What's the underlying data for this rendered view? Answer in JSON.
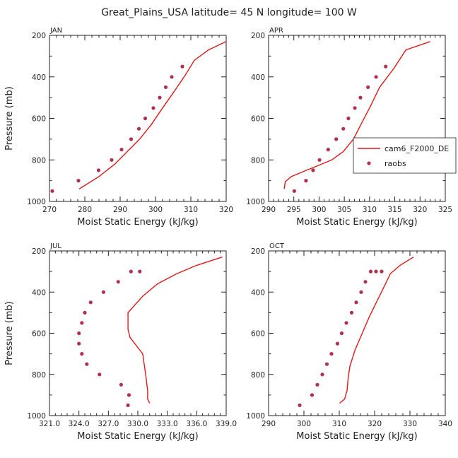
{
  "figure": {
    "title": "Great_Plains_USA  latitude= 45 N longitude= 100 W"
  },
  "colors": {
    "model": "#e01818",
    "obs": "#b03050",
    "axis": "#222222"
  },
  "legend": {
    "model_label": "cam6_F2000_DE",
    "obs_label": "raobs"
  },
  "chart_data": [
    {
      "type": "line",
      "panel": "JAN",
      "title": "JAN",
      "xlabel": "Moist Static Energy (kJ/kg)",
      "ylabel": "Pressure (mb)",
      "xlim": [
        270,
        320
      ],
      "ylim": [
        1000,
        200
      ],
      "xticks": [
        270,
        280,
        290,
        300,
        310,
        320
      ],
      "xtick_labels": [
        "270",
        "280",
        "290",
        "300",
        "310",
        "320"
      ],
      "yticks": [
        200,
        400,
        600,
        800,
        1000
      ],
      "ytick_labels": [
        "200",
        "400",
        "600",
        "800",
        "1000"
      ],
      "series": [
        {
          "name": "cam6_F2000_DE",
          "style": "line",
          "x": [
            278.4,
            284,
            288.5,
            292,
            295.5,
            298.8,
            302,
            305.3,
            308.5,
            311,
            315,
            320
          ],
          "y": [
            940,
            880,
            820,
            760,
            700,
            630,
            550,
            470,
            390,
            320,
            270,
            230
          ]
        },
        {
          "name": "raobs",
          "style": "points",
          "x": [
            270.8,
            278.2,
            283.9,
            287.6,
            290.4,
            293.1,
            295.3,
            297.1,
            299.4,
            301.2,
            302.9,
            304.6,
            307.6
          ],
          "y": [
            950,
            900,
            850,
            800,
            750,
            700,
            650,
            600,
            550,
            500,
            450,
            400,
            350
          ]
        }
      ]
    },
    {
      "type": "line",
      "panel": "APR",
      "title": "APR",
      "xlabel": "Moist Static Energy (kJ/kg)",
      "ylabel": "",
      "xlim": [
        290,
        325
      ],
      "ylim": [
        1000,
        200
      ],
      "xticks": [
        290,
        295,
        300,
        305,
        310,
        315,
        320,
        325
      ],
      "xtick_labels": [
        "290",
        "295",
        "300",
        "305",
        "310",
        "315",
        "320",
        "325"
      ],
      "yticks": [
        200,
        400,
        600,
        800,
        1000
      ],
      "ytick_labels": [
        "200",
        "400",
        "600",
        "800",
        "1000"
      ],
      "legend_position": "right-middle",
      "series": [
        {
          "name": "cam6_F2000_DE",
          "style": "line",
          "x": [
            293.1,
            293.3,
            294.5,
            296.5,
            299.5,
            302.5,
            304.8,
            306.8,
            308.5,
            310.2,
            312,
            314.8,
            317.2,
            322
          ],
          "y": [
            940,
            905,
            880,
            860,
            830,
            800,
            760,
            700,
            620,
            540,
            450,
            360,
            270,
            230
          ]
        },
        {
          "name": "raobs",
          "style": "points",
          "x": [
            295.1,
            297.4,
            298.8,
            300.1,
            301.8,
            303.4,
            304.8,
            305.8,
            307.1,
            308.2,
            309.7,
            311.3,
            313.2
          ],
          "y": [
            950,
            900,
            850,
            800,
            750,
            700,
            650,
            600,
            550,
            500,
            450,
            400,
            350
          ]
        }
      ]
    },
    {
      "type": "line",
      "panel": "JUL",
      "title": "JUL",
      "xlabel": "Moist Static Energy (kJ/kg)",
      "ylabel": "Pressure (mb)",
      "xlim": [
        321,
        339
      ],
      "ylim": [
        1000,
        200
      ],
      "xticks": [
        321,
        324,
        327,
        330,
        333,
        336,
        339
      ],
      "xtick_labels": [
        "321.0",
        "324.0",
        "327.0",
        "330.0",
        "333.0",
        "336.0",
        "339.0"
      ],
      "yticks": [
        200,
        400,
        600,
        800,
        1000
      ],
      "ytick_labels": [
        "200",
        "400",
        "600",
        "800",
        "1000"
      ],
      "series": [
        {
          "name": "cam6_F2000_DE",
          "style": "line",
          "x": [
            331.2,
            331,
            331,
            330.8,
            330.5,
            329.2,
            329,
            329,
            330.5,
            332,
            334,
            336,
            338.6
          ],
          "y": [
            940,
            920,
            880,
            800,
            700,
            620,
            580,
            500,
            420,
            360,
            310,
            270,
            230
          ]
        },
        {
          "name": "raobs",
          "style": "points",
          "x": [
            329.0,
            329.1,
            328.3,
            326.1,
            324.8,
            324.3,
            324.0,
            324.0,
            324.3,
            324.6,
            325.2,
            326.5,
            328.0,
            329.3,
            330.2
          ],
          "y": [
            950,
            900,
            850,
            800,
            750,
            700,
            650,
            600,
            550,
            500,
            450,
            400,
            350,
            300,
            300
          ]
        }
      ]
    },
    {
      "type": "line",
      "panel": "OCT",
      "title": "OCT",
      "xlabel": "Moist Static Energy (kJ/kg)",
      "ylabel": "",
      "xlim": [
        290,
        340
      ],
      "ylim": [
        1000,
        200
      ],
      "xticks": [
        290,
        300,
        310,
        320,
        330,
        340
      ],
      "xtick_labels": [
        "290",
        "300",
        "310",
        "320",
        "330",
        "340"
      ],
      "yticks": [
        200,
        400,
        600,
        800,
        1000
      ],
      "ytick_labels": [
        "200",
        "400",
        "600",
        "800",
        "1000"
      ],
      "series": [
        {
          "name": "cam6_F2000_DE",
          "style": "line",
          "x": [
            310.1,
            311.5,
            312.2,
            312.5,
            313,
            314.5,
            316.5,
            318.5,
            320.5,
            322.5,
            324.5,
            327.2,
            331
          ],
          "y": [
            940,
            920,
            880,
            820,
            760,
            680,
            600,
            520,
            450,
            380,
            310,
            270,
            230
          ]
        },
        {
          "name": "raobs",
          "style": "points",
          "x": [
            298.8,
            302.3,
            303.8,
            305.2,
            306.5,
            307.8,
            309.5,
            310.7,
            312.0,
            313.5,
            314.8,
            316.2,
            317.4,
            318.9,
            320.4,
            322.0
          ],
          "y": [
            950,
            900,
            850,
            800,
            750,
            700,
            650,
            600,
            550,
            500,
            450,
            400,
            350,
            300,
            300,
            300
          ]
        }
      ]
    }
  ]
}
